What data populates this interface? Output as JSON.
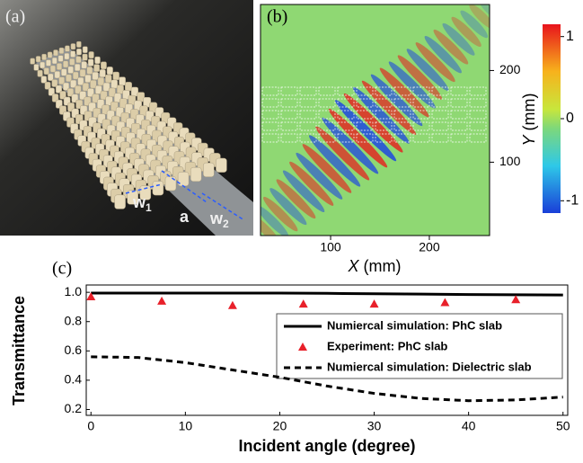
{
  "panel_a": {
    "label": "(a)",
    "dimensions": [
      {
        "symbol": "w",
        "subscript": "1"
      },
      {
        "symbol": "a"
      },
      {
        "symbol": "w",
        "subscript": "2"
      }
    ]
  },
  "panel_b": {
    "label": "(b)",
    "xlabel": {
      "symbol": "X",
      "unit": "(mm)"
    },
    "ylabel": {
      "symbol": "Y",
      "unit": "(mm)"
    },
    "xlim": [
      29,
      261
    ],
    "xticks": [
      100,
      200
    ],
    "ylim": [
      20,
      272
    ],
    "yticks": [
      100,
      200
    ],
    "colorbar": {
      "lim": [
        -1.15,
        1.15
      ],
      "ticks": [
        1,
        0,
        -1
      ]
    }
  },
  "chart_data": {
    "type": "line",
    "label": "(c)",
    "x_label": "Incident angle (degree)",
    "y_label": "Transmittance",
    "xlim": [
      -0.5,
      50.5
    ],
    "xticks": [
      0,
      10,
      20,
      30,
      40,
      50
    ],
    "ylim": [
      0.16,
      1.05
    ],
    "yticks": [
      0.2,
      0.4,
      0.6,
      0.8,
      {
        "value": 1,
        "label": "1.0"
      }
    ],
    "series": [
      {
        "name": "Numiercal simulation: PhC slab",
        "color": "#000000",
        "style": "solid",
        "x": [
          0,
          5,
          10,
          15,
          20,
          25,
          30,
          35,
          40,
          45,
          50
        ],
        "values": [
          0.995,
          0.995,
          0.995,
          0.995,
          0.995,
          0.993,
          0.99,
          0.988,
          0.985,
          0.983,
          0.982
        ]
      },
      {
        "name": "Experiment: PhC slab",
        "color": "#e8202a",
        "style": "markers",
        "x": [
          0,
          7.5,
          15,
          22.5,
          30,
          37.5,
          45
        ],
        "values": [
          0.97,
          0.94,
          0.91,
          0.92,
          0.92,
          0.93,
          0.95
        ]
      },
      {
        "name": "Numiercal simulation: Dielectric slab",
        "color": "#000000",
        "style": "dashed",
        "x": [
          0,
          5,
          10,
          15,
          20,
          25,
          30,
          35,
          40,
          45,
          50
        ],
        "values": [
          0.56,
          0.555,
          0.52,
          0.47,
          0.42,
          0.36,
          0.31,
          0.275,
          0.26,
          0.265,
          0.285
        ]
      }
    ]
  }
}
